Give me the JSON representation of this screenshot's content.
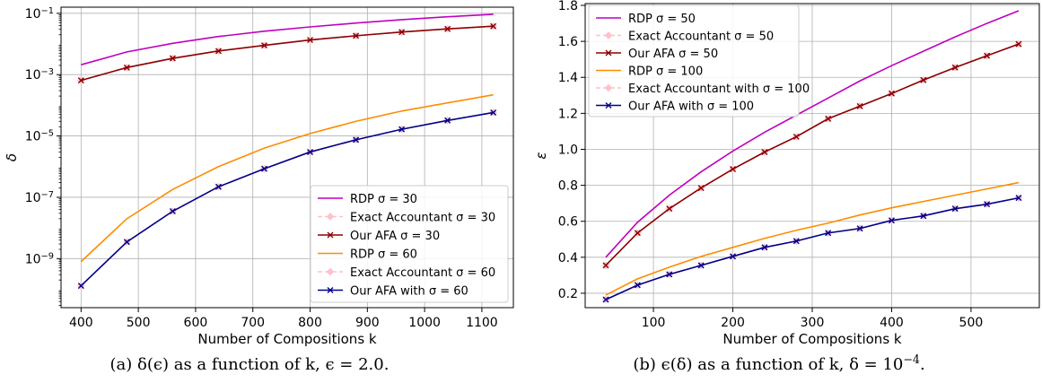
{
  "chart_data": [
    {
      "type": "line",
      "caption": "(a) δ(ϵ) as a function of k, ϵ = 2.0.",
      "xlabel": "Number of Compositions k",
      "ylabel": "δ",
      "yscale": "log",
      "xlim": [
        365,
        1155
      ],
      "ylim_log10": [
        -10.6,
        -0.8
      ],
      "xticks": [
        400,
        500,
        600,
        700,
        800,
        900,
        1000,
        1100
      ],
      "yticks": [
        {
          "exp": -1,
          "label": "10^-1"
        },
        {
          "exp": -3,
          "label": "10^-3"
        },
        {
          "exp": -5,
          "label": "10^-5"
        },
        {
          "exp": -7,
          "label": "10^-7"
        },
        {
          "exp": -9,
          "label": "10^-9"
        }
      ],
      "grid": true,
      "legend_position": "lower-right",
      "x": [
        400,
        480,
        560,
        640,
        720,
        800,
        880,
        960,
        1040,
        1120
      ],
      "series": [
        {
          "name": "RDP σ = 30",
          "color": "#bf00bf",
          "marker": "none",
          "dashed": false,
          "values": [
            0.0021,
            0.0055,
            0.0105,
            0.0175,
            0.026,
            0.036,
            0.048,
            0.062,
            0.077,
            0.093
          ]
        },
        {
          "name": "Exact Accountant σ = 30",
          "color": "#ffc0cb",
          "marker": "diamond",
          "dashed": true,
          "values": [
            0.00065,
            0.0017,
            0.0034,
            0.0059,
            0.009,
            0.0135,
            0.0185,
            0.0245,
            0.031,
            0.038
          ]
        },
        {
          "name": "Our AFA σ = 30",
          "color": "#8b0000",
          "marker": "x",
          "dashed": false,
          "values": [
            0.00065,
            0.0017,
            0.0034,
            0.0059,
            0.009,
            0.0135,
            0.0185,
            0.0245,
            0.031,
            0.038
          ]
        },
        {
          "name": "RDP σ = 60",
          "color": "#ff8c00",
          "marker": "none",
          "dashed": false,
          "values": [
            8e-10,
            2e-08,
            1.8e-07,
            1e-06,
            4e-06,
            1.2e-05,
            3e-05,
            6.5e-05,
            0.00012,
            0.00022
          ]
        },
        {
          "name": "Exact Accountant σ = 60",
          "color": "#ffc0cb",
          "marker": "diamond",
          "dashed": true,
          "values": [
            1.3e-10,
            3.5e-09,
            3.5e-08,
            2.2e-07,
            8.5e-07,
            3e-06,
            7.5e-06,
            1.65e-05,
            3.2e-05,
            5.8e-05
          ]
        },
        {
          "name": "Our AFA with σ = 60",
          "color": "#00008b",
          "marker": "x",
          "dashed": false,
          "values": [
            1.3e-10,
            3.5e-09,
            3.5e-08,
            2.2e-07,
            8.5e-07,
            3e-06,
            7.5e-06,
            1.65e-05,
            3.2e-05,
            5.8e-05
          ]
        }
      ]
    },
    {
      "type": "line",
      "caption": "(b) ϵ(δ) as a function of k, δ = 10^-4.",
      "xlabel": "Number of Compositions k",
      "ylabel": "ε",
      "yscale": "linear",
      "xlim": [
        14,
        586
      ],
      "ylim": [
        0.12,
        1.81
      ],
      "xticks": [
        100,
        200,
        300,
        400,
        500
      ],
      "yticks": [
        0.2,
        0.4,
        0.6,
        0.8,
        1.0,
        1.2,
        1.4,
        1.6,
        1.8
      ],
      "grid": true,
      "legend_position": "upper-left",
      "x": [
        40,
        80,
        120,
        160,
        200,
        240,
        280,
        320,
        360,
        400,
        440,
        480,
        520,
        560
      ],
      "series": [
        {
          "name": "RDP σ = 50",
          "color": "#bf00bf",
          "marker": "none",
          "dashed": false,
          "values": [
            0.4,
            0.595,
            0.745,
            0.875,
            0.99,
            1.095,
            1.19,
            1.285,
            1.38,
            1.465,
            1.545,
            1.625,
            1.7,
            1.77
          ]
        },
        {
          "name": "Exact Accountant σ = 50",
          "color": "#ffc0cb",
          "marker": "diamond",
          "dashed": true,
          "values": [
            0.355,
            0.535,
            0.67,
            0.785,
            0.89,
            0.985,
            1.07,
            1.17,
            1.24,
            1.31,
            1.385,
            1.455,
            1.52,
            1.585
          ]
        },
        {
          "name": "Our AFA σ = 50",
          "color": "#8b0000",
          "marker": "x",
          "dashed": false,
          "values": [
            0.355,
            0.535,
            0.67,
            0.785,
            0.89,
            0.985,
            1.07,
            1.17,
            1.24,
            1.31,
            1.385,
            1.455,
            1.52,
            1.585
          ]
        },
        {
          "name": "RDP  σ = 100",
          "color": "#ff8c00",
          "marker": "none",
          "dashed": false,
          "values": [
            0.19,
            0.28,
            0.345,
            0.405,
            0.455,
            0.505,
            0.55,
            0.59,
            0.635,
            0.675,
            0.71,
            0.745,
            0.78,
            0.815
          ]
        },
        {
          "name": "Exact Accountant with σ = 100",
          "color": "#ffc0cb",
          "marker": "diamond",
          "dashed": true,
          "values": [
            0.165,
            0.245,
            0.305,
            0.355,
            0.405,
            0.455,
            0.49,
            0.535,
            0.56,
            0.605,
            0.63,
            0.67,
            0.695,
            0.73
          ]
        },
        {
          "name": "Our AFA with σ = 100",
          "color": "#00008b",
          "marker": "x",
          "dashed": false,
          "values": [
            0.165,
            0.245,
            0.305,
            0.355,
            0.405,
            0.455,
            0.49,
            0.535,
            0.56,
            0.605,
            0.63,
            0.67,
            0.695,
            0.73
          ]
        }
      ]
    }
  ]
}
